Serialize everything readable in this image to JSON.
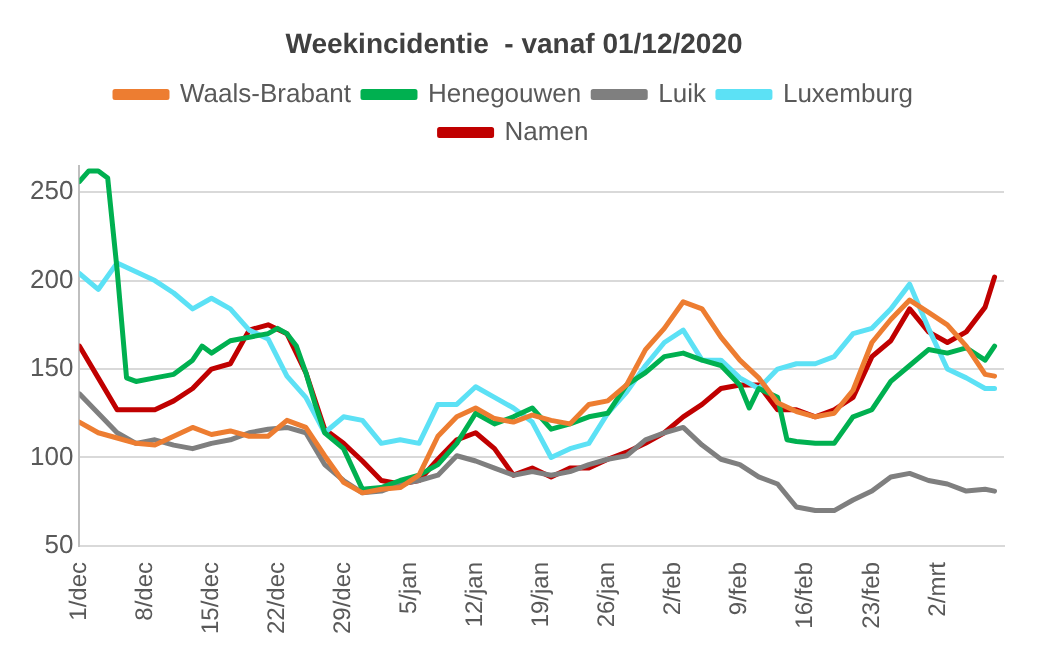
{
  "chart_data": {
    "type": "line",
    "title": "Weekincidentie  - vanaf 01/12/2020",
    "x": [
      "2020-12-01",
      "2020-12-03",
      "2020-12-05",
      "2020-12-07",
      "2020-12-09",
      "2020-12-11",
      "2020-12-13",
      "2020-12-15",
      "2020-12-17",
      "2020-12-19",
      "2020-12-21",
      "2020-12-23",
      "2020-12-25",
      "2020-12-27",
      "2020-12-29",
      "2020-12-31",
      "2021-01-02",
      "2021-01-04",
      "2021-01-06",
      "2021-01-08",
      "2021-01-10",
      "2021-01-12",
      "2021-01-14",
      "2021-01-16",
      "2021-01-18",
      "2021-01-20",
      "2021-01-22",
      "2021-01-24",
      "2021-01-26",
      "2021-01-28",
      "2021-01-30",
      "2021-02-01",
      "2021-02-03",
      "2021-02-05",
      "2021-02-07",
      "2021-02-09",
      "2021-02-11",
      "2021-02-13",
      "2021-02-15",
      "2021-02-17",
      "2021-02-19",
      "2021-02-21",
      "2021-02-23",
      "2021-02-25",
      "2021-02-27",
      "2021-03-01",
      "2021-03-03",
      "2021-03-05",
      "2021-03-07",
      "2021-03-08"
    ],
    "series": [
      {
        "name": "Waals-Brabant",
        "color": "#ed7d31",
        "values": [
          120,
          114,
          111,
          108,
          107,
          112,
          117,
          113,
          115,
          112,
          112,
          121,
          117,
          101,
          86,
          80,
          82,
          83,
          90,
          112,
          123,
          128,
          122,
          120,
          124,
          121,
          119,
          130,
          132,
          141,
          161,
          173,
          188,
          184,
          168,
          155,
          145,
          131,
          126,
          123,
          125,
          138,
          165,
          178,
          189,
          182,
          175,
          163,
          147,
          146
        ]
      },
      {
        "name": "Henegouwen",
        "color": "#00b050",
        "x": [
          "2020-12-01",
          "2020-12-02",
          "2020-12-03",
          "2020-12-04",
          "2020-12-05",
          "2020-12-06",
          "2020-12-07",
          "2020-12-09",
          "2020-12-11",
          "2020-12-13",
          "2020-12-14",
          "2020-12-15",
          "2020-12-17",
          "2020-12-19",
          "2020-12-21",
          "2020-12-22",
          "2020-12-23",
          "2020-12-24",
          "2020-12-25",
          "2020-12-26",
          "2020-12-27",
          "2020-12-29",
          "2020-12-31",
          "2021-01-02",
          "2021-01-04",
          "2021-01-06",
          "2021-01-08",
          "2021-01-10",
          "2021-01-12",
          "2021-01-14",
          "2021-01-16",
          "2021-01-18",
          "2021-01-20",
          "2021-01-22",
          "2021-01-24",
          "2021-01-26",
          "2021-01-28",
          "2021-01-30",
          "2021-02-01",
          "2021-02-03",
          "2021-02-05",
          "2021-02-07",
          "2021-02-09",
          "2021-02-10",
          "2021-02-11",
          "2021-02-13",
          "2021-02-14",
          "2021-02-15",
          "2021-02-17",
          "2021-02-19",
          "2021-02-21",
          "2021-02-23",
          "2021-02-25",
          "2021-02-27",
          "2021-03-01",
          "2021-03-03",
          "2021-03-05",
          "2021-03-07",
          "2021-03-08"
        ],
        "values": [
          256,
          262,
          262,
          258,
          206,
          145,
          143,
          145,
          147,
          155,
          163,
          159,
          166,
          168,
          170,
          173,
          170,
          163,
          148,
          130,
          114,
          105,
          82,
          83,
          87,
          90,
          96,
          108,
          125,
          119,
          123,
          128,
          116,
          119,
          123,
          125,
          141,
          148,
          157,
          159,
          155,
          152,
          141,
          128,
          139,
          134,
          110,
          109,
          108,
          108,
          123,
          127,
          143,
          152,
          161,
          159,
          162,
          155,
          163
        ]
      },
      {
        "name": "Luik",
        "color": "#7f7f7f",
        "values": [
          136,
          125,
          114,
          108,
          110,
          107,
          105,
          108,
          110,
          114,
          116,
          117,
          114,
          96,
          87,
          80,
          81,
          85,
          87,
          90,
          101,
          98,
          94,
          90,
          92,
          90,
          92,
          96,
          99,
          101,
          110,
          114,
          117,
          107,
          99,
          96,
          89,
          85,
          72,
          70,
          70,
          76,
          81,
          89,
          91,
          87,
          85,
          81,
          82,
          81
        ]
      },
      {
        "name": "Luxemburg",
        "color": "#5ce1f5",
        "values": [
          204,
          195,
          210,
          205,
          200,
          193,
          184,
          190,
          184,
          172,
          167,
          146,
          134,
          114,
          123,
          121,
          108,
          110,
          108,
          130,
          130,
          140,
          134,
          128,
          120,
          100,
          105,
          108,
          125,
          137,
          152,
          165,
          172,
          155,
          155,
          145,
          139,
          150,
          153,
          153,
          157,
          170,
          173,
          184,
          198,
          173,
          150,
          145,
          139,
          139
        ]
      },
      {
        "name": "Namen",
        "color": "#c00000",
        "values": [
          163,
          145,
          127,
          127,
          127,
          132,
          139,
          150,
          153,
          172,
          175,
          170,
          148,
          116,
          108,
          98,
          87,
          85,
          87,
          99,
          110,
          114,
          105,
          90,
          94,
          89,
          94,
          94,
          99,
          103,
          108,
          114,
          123,
          130,
          139,
          141,
          141,
          127,
          127,
          123,
          127,
          134,
          157,
          166,
          184,
          171,
          165,
          171,
          185,
          202
        ]
      }
    ],
    "xlim": [
      "2020-12-01",
      "2021-03-09"
    ],
    "xticks": [
      {
        "value": "2020-12-01",
        "label": "1/dec"
      },
      {
        "value": "2020-12-08",
        "label": "8/dec"
      },
      {
        "value": "2020-12-15",
        "label": "15/dec"
      },
      {
        "value": "2020-12-22",
        "label": "22/dec"
      },
      {
        "value": "2020-12-29",
        "label": "29/dec"
      },
      {
        "value": "2021-01-05",
        "label": "5/jan"
      },
      {
        "value": "2021-01-12",
        "label": "12/jan"
      },
      {
        "value": "2021-01-19",
        "label": "19/jan"
      },
      {
        "value": "2021-01-26",
        "label": "26/jan"
      },
      {
        "value": "2021-02-02",
        "label": "2/feb"
      },
      {
        "value": "2021-02-09",
        "label": "9/feb"
      },
      {
        "value": "2021-02-16",
        "label": "16/feb"
      },
      {
        "value": "2021-02-23",
        "label": "23/feb"
      },
      {
        "value": "2021-03-02",
        "label": "2/mrt"
      }
    ],
    "ylim": [
      50,
      265
    ],
    "yticks": [
      50,
      100,
      150,
      200,
      250
    ],
    "grid": "y",
    "legend": "top",
    "marker": "none",
    "line_style": "solid"
  }
}
